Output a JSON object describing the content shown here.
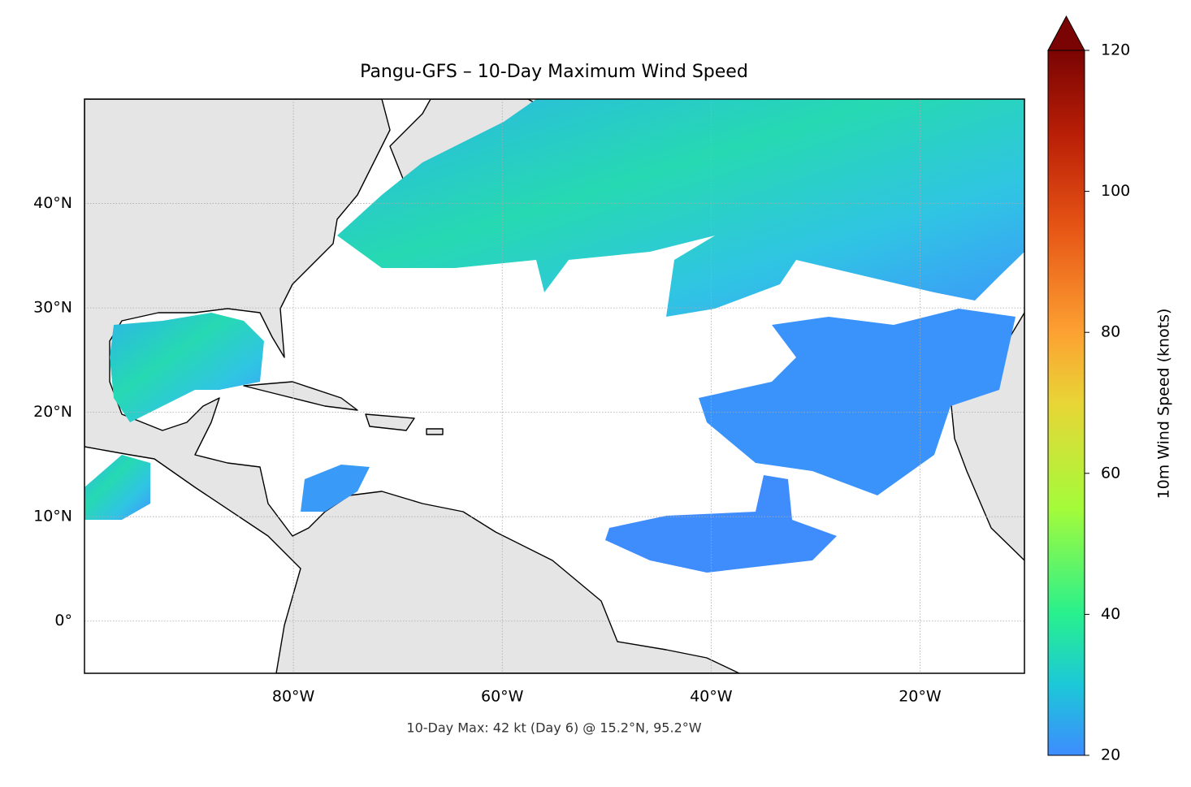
{
  "chart_data": {
    "type": "map",
    "title": "Pangu-GFS – 10-Day Maximum Wind Speed",
    "footnote": "10-Day Max: 42 kt (Day 6) @ 15.2°N, 95.2°W",
    "xlim": [
      -100,
      -10
    ],
    "ylim": [
      -5,
      50
    ],
    "xticks": [
      {
        "value": -80,
        "label": "80°W"
      },
      {
        "value": -60,
        "label": "60°W"
      },
      {
        "value": -40,
        "label": "40°W"
      },
      {
        "value": -20,
        "label": "20°W"
      }
    ],
    "yticks": [
      {
        "value": 0,
        "label": "0°"
      },
      {
        "value": 10,
        "label": "10°N"
      },
      {
        "value": 20,
        "label": "20°N"
      },
      {
        "value": 30,
        "label": "30°N"
      },
      {
        "value": 40,
        "label": "40°N"
      }
    ],
    "grid": true,
    "colorbar": {
      "label": "10m Wind Speed (knots)",
      "lim": [
        20,
        120
      ],
      "ticks": [
        20,
        40,
        60,
        80,
        100,
        120
      ],
      "extend": "max"
    }
  }
}
